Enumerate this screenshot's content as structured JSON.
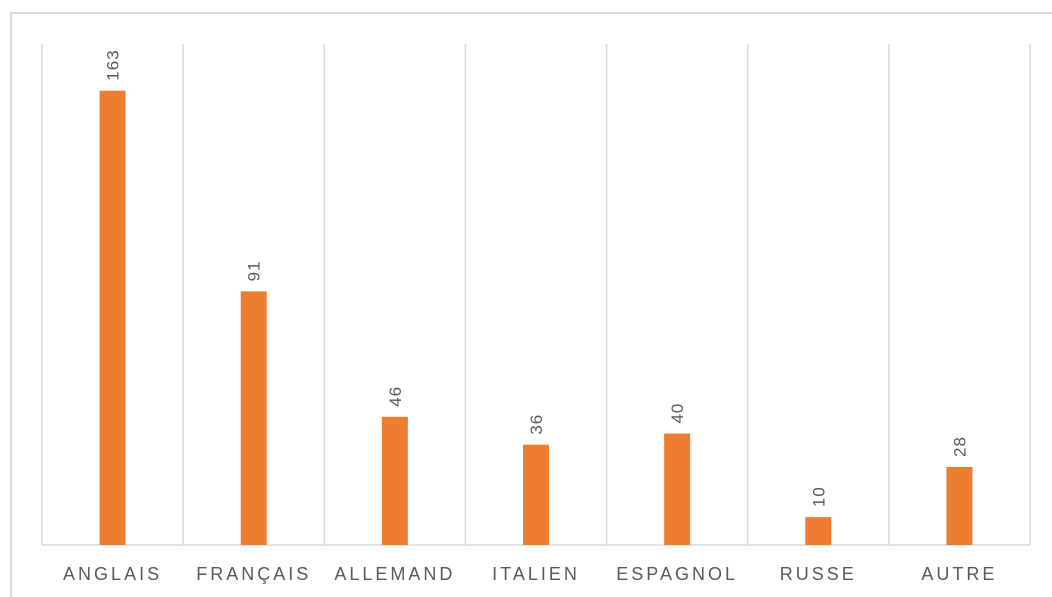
{
  "chart_data": {
    "type": "bar",
    "categories": [
      "ANGLAIS",
      "FRANÇAIS",
      "ALLEMAND",
      "ITALIEN",
      "ESPAGNOL",
      "RUSSE",
      "AUTRE"
    ],
    "values": [
      163,
      91,
      46,
      36,
      40,
      10,
      28
    ],
    "title": "",
    "xlabel": "",
    "ylabel": "",
    "ylim": [
      0,
      180
    ],
    "data_labels_rotated": true,
    "grid": "vertical category separators",
    "legend": "none"
  },
  "colors": {
    "bar": "#ED7D31",
    "grid": "#d9d9d9",
    "text": "#595959"
  }
}
